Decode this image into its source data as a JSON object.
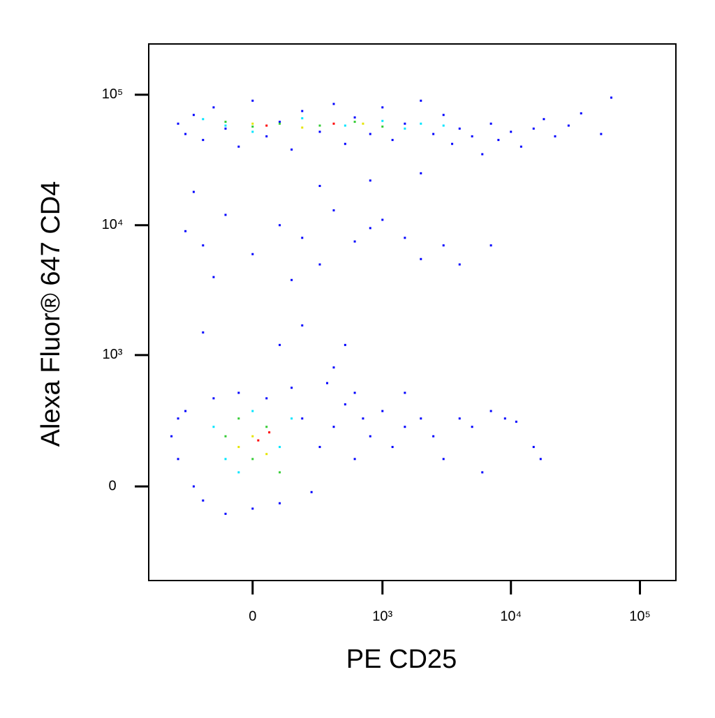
{
  "chart_data": {
    "type": "scatter",
    "x_label": "PE CD25",
    "y_label": "Alexa Fluor® 647  CD4",
    "scale": "asinh",
    "xlim": [
      -620,
      190000
    ],
    "ylim": [
      -505,
      245000
    ],
    "xticks": [
      0,
      {
        "value": 1000,
        "label": "10³"
      },
      {
        "value": 10000,
        "label": "10⁴"
      },
      {
        "value": 100000,
        "label": "10⁵"
      }
    ],
    "yticks": [
      0,
      {
        "value": 1000,
        "label": "10³"
      },
      {
        "value": 10000,
        "label": "10⁴"
      },
      {
        "value": 100000,
        "label": "10⁵"
      }
    ],
    "series": [
      {
        "color": "#0000ff",
        "x": [
          -350,
          -300,
          -250,
          -200,
          -150,
          -100,
          -50,
          0,
          50,
          100,
          150,
          200,
          300,
          400,
          500,
          600,
          800,
          1000,
          1200,
          1500,
          2000,
          2500,
          3000,
          3500,
          4000,
          5000,
          6000,
          7000,
          8000,
          10000,
          12000,
          15000,
          18000,
          22000,
          28000,
          35000,
          50000,
          60000,
          -250,
          300,
          800,
          2000,
          -300,
          -200,
          -100,
          0,
          100,
          200,
          300,
          400,
          600,
          800,
          1000,
          1500,
          2000,
          3000,
          4000,
          7000,
          -150,
          150,
          -200,
          200,
          100,
          500,
          400,
          -400,
          -350,
          -300,
          -250,
          -200,
          -150,
          -100,
          -50,
          0,
          50,
          100,
          150,
          200,
          250,
          300,
          400,
          500,
          600,
          700,
          800,
          1000,
          1200,
          1500,
          2000,
          2500,
          3000,
          4000,
          5000,
          6000,
          7000,
          9000,
          11000,
          15000,
          17000,
          600,
          1500,
          -350,
          350
        ],
        "values": [
          60000,
          50000,
          70000,
          45000,
          80000,
          55000,
          40000,
          90000,
          48000,
          62000,
          38000,
          75000,
          52000,
          85000,
          42000,
          67000,
          50000,
          80000,
          45000,
          60000,
          90000,
          50000,
          70000,
          42000,
          55000,
          48000,
          35000,
          60000,
          45000,
          52000,
          40000,
          55000,
          65000,
          48000,
          58000,
          72000,
          50000,
          95000,
          18000,
          20000,
          22000,
          25000,
          9000,
          7000,
          12000,
          6000,
          10000,
          8000,
          5000,
          13000,
          7500,
          9500,
          11000,
          8000,
          5500,
          7000,
          5000,
          7000,
          4000,
          3800,
          1500,
          1700,
          1200,
          1200,
          800,
          200,
          100,
          350,
          0,
          -50,
          450,
          -100,
          500,
          -80,
          450,
          -60,
          550,
          300,
          -20,
          150,
          250,
          400,
          100,
          300,
          200,
          350,
          150,
          250,
          300,
          200,
          100,
          300,
          250,
          50,
          350,
          300,
          280,
          150,
          100,
          500,
          500,
          300,
          600
        ]
      },
      {
        "color": "#00e5ff",
        "x": [
          -200,
          -100,
          0,
          200,
          500,
          1000,
          1500,
          2000,
          3000,
          -150,
          -100,
          0,
          100,
          150,
          -50
        ],
        "values": [
          65000,
          58000,
          52000,
          66000,
          58000,
          63000,
          55000,
          60000,
          58000,
          250,
          100,
          350,
          150,
          300,
          50
        ]
      },
      {
        "color": "#33cc33",
        "x": [
          -100,
          0,
          100,
          300,
          600,
          1000,
          -100,
          0,
          50,
          -50,
          100
        ],
        "values": [
          62000,
          57000,
          60000,
          58000,
          62000,
          57000,
          200,
          100,
          250,
          300,
          50
        ]
      },
      {
        "color": "#e5e500",
        "x": [
          0,
          200,
          700,
          0,
          50,
          -50
        ],
        "values": [
          60000,
          56000,
          60000,
          200,
          120,
          150
        ]
      },
      {
        "color": "#ff0000",
        "x": [
          50,
          400,
          20,
          60
        ],
        "values": [
          58000,
          60000,
          180,
          220
        ]
      }
    ]
  }
}
